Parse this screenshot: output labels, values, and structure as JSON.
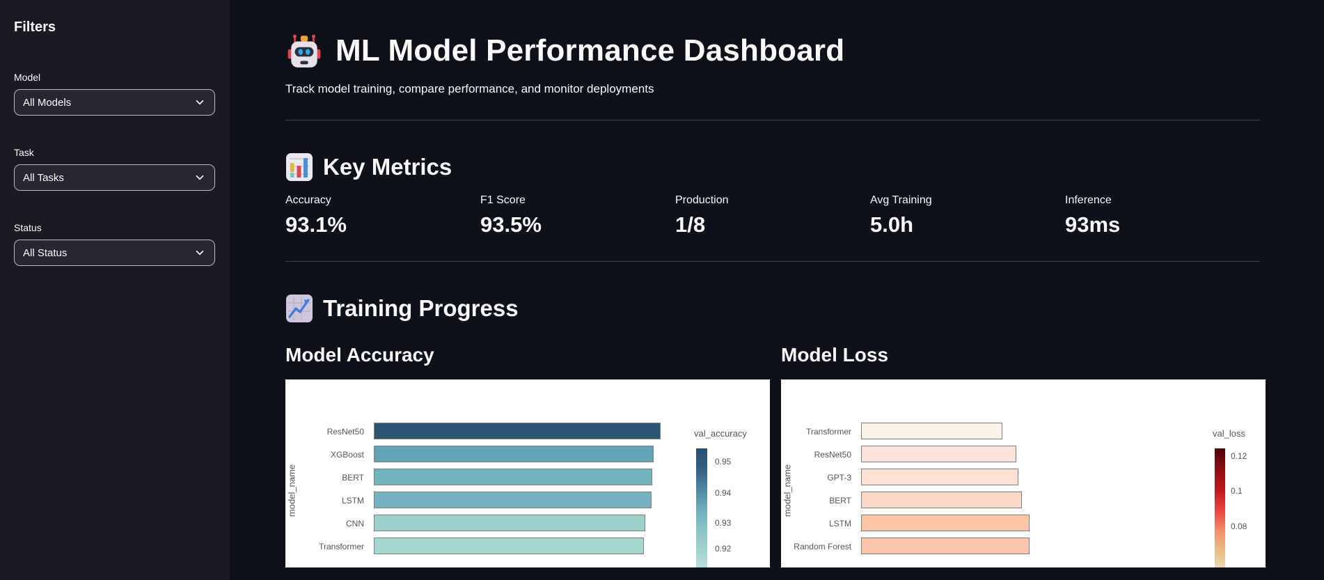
{
  "app": {
    "background": "#0e1117",
    "sidebar_background": "#1a1b22",
    "card_background": "#ffffff",
    "text_color": "#fafafa"
  },
  "sidebar": {
    "title": "Filters",
    "filters": [
      {
        "label": "Model",
        "value": "All Models"
      },
      {
        "label": "Task",
        "value": "All Tasks"
      },
      {
        "label": "Status",
        "value": "All Status"
      }
    ]
  },
  "header": {
    "icon": "robot",
    "title": "ML Model Performance Dashboard",
    "subtitle": "Track model training, compare performance, and monitor deployments"
  },
  "key_metrics": {
    "icon": "bar-chart",
    "heading": "Key Metrics",
    "metrics": [
      {
        "label": "Accuracy",
        "value": "93.1%"
      },
      {
        "label": "F1 Score",
        "value": "93.5%"
      },
      {
        "label": "Production",
        "value": "1/8"
      },
      {
        "label": "Avg Training",
        "value": "5.0h"
      },
      {
        "label": "Inference",
        "value": "93ms"
      }
    ]
  },
  "training_progress": {
    "icon": "chart-increasing",
    "heading": "Training Progress"
  },
  "chart_data": [
    {
      "type": "bar",
      "orientation": "horizontal",
      "title": "Model Accuracy",
      "ylabel": "model_name",
      "series_name": "val_accuracy",
      "categories": [
        "ResNet50",
        "XGBoost",
        "BERT",
        "LSTM",
        "CNN",
        "Transformer"
      ],
      "values": [
        0.954,
        0.941,
        0.939,
        0.938,
        0.927,
        0.924
      ],
      "bar_colors": [
        "#2d5472",
        "#62a4b4",
        "#74b4bf",
        "#74b3bf",
        "#9cd0cb",
        "#a5d8d2"
      ],
      "legend": {
        "title": "val_accuracy",
        "position": "right",
        "ticks": [
          "0.95",
          "0.94",
          "0.93",
          "0.92"
        ],
        "gradient": [
          "#2b516f",
          "#35607f",
          "#4f8aa6",
          "#6fb0bd",
          "#8cc6c6",
          "#a5d5cf",
          "#bfe3da",
          "#d4ece3"
        ]
      },
      "layout_hints": {
        "sorted": "descending",
        "x_axis_visible": false
      }
    },
    {
      "type": "bar",
      "orientation": "horizontal",
      "title": "Model Loss",
      "ylabel": "model_name",
      "series_name": "val_loss",
      "categories": [
        "Transformer",
        "ResNet50",
        "GPT-3",
        "BERT",
        "LSTM",
        "Random Forest"
      ],
      "values": [
        0.068,
        0.075,
        0.076,
        0.078,
        0.082,
        0.082
      ],
      "bar_colors": [
        "#faf4e8",
        "#fde3d7",
        "#fde2d3",
        "#fdd8c4",
        "#fcc5a8",
        "#fbc6a9"
      ],
      "legend": {
        "title": "val_loss",
        "position": "right",
        "ticks": [
          "0.12",
          "0.1",
          "0.08"
        ],
        "gradient": [
          "#4d050e",
          "#8c0e12",
          "#c0191d",
          "#e8473f",
          "#f4906c",
          "#e9c189",
          "#f3ddc0",
          "#fbf2e2"
        ]
      },
      "layout_hints": {
        "sorted": "ascending",
        "x_axis_visible": false
      }
    }
  ]
}
